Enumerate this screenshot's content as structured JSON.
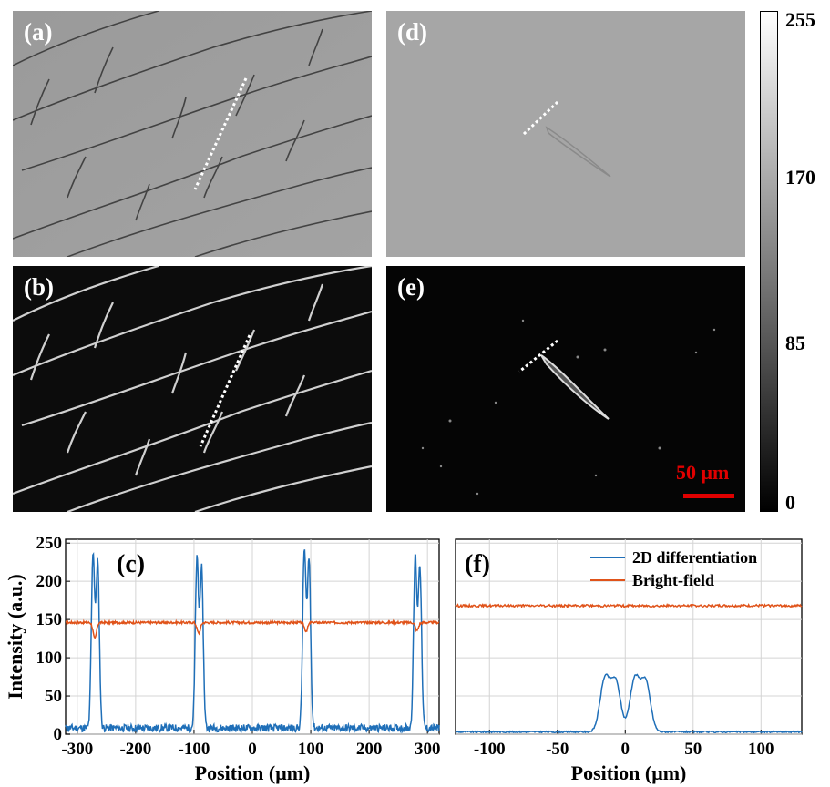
{
  "panels": {
    "a": {
      "label": "(a)"
    },
    "b": {
      "label": "(b)"
    },
    "d": {
      "label": "(d)"
    },
    "e": {
      "label": "(e)"
    }
  },
  "colorbar": {
    "ticks": [
      "255",
      "170",
      "85",
      "0"
    ],
    "values": [
      255,
      170,
      85,
      0
    ]
  },
  "scale_bar": {
    "label": "50 μm",
    "color": "#e00000"
  },
  "colors": {
    "series_2d": "#1f6fb8",
    "series_bf": "#e0531a"
  },
  "chart_data": [
    {
      "type": "line",
      "panel_label": "(c)",
      "xlabel": "Position (μm)",
      "ylabel": "Intensity (a.u.)",
      "xlim": [
        -320,
        320
      ],
      "ylim": [
        0,
        255
      ],
      "xticks": [
        -300,
        -200,
        -100,
        0,
        100,
        200,
        300
      ],
      "yticks": [
        0,
        50,
        100,
        150,
        200,
        250
      ],
      "grid": true,
      "peaks": [
        -270,
        -92,
        92,
        282
      ],
      "series": [
        {
          "key": "2d",
          "name": "2D differentiation",
          "baseline": 8,
          "peak_values": [
            240,
            230,
            243,
            235
          ]
        },
        {
          "key": "bf",
          "name": "Bright-field",
          "level": 146,
          "dip_values": [
            125,
            132,
            135,
            136
          ]
        }
      ]
    },
    {
      "type": "line",
      "panel_label": "(f)",
      "xlabel": "Position (μm)",
      "xlim": [
        -125,
        130
      ],
      "ylim": [
        0,
        255
      ],
      "xticks": [
        -100,
        -50,
        0,
        50,
        100
      ],
      "grid": true,
      "legend": "top-right",
      "peaks": [
        -12,
        10
      ],
      "series": [
        {
          "key": "2d",
          "name": "2D differentiation",
          "baseline": 3,
          "peak_values": [
            72,
            72
          ]
        },
        {
          "key": "bf",
          "name": "Bright-field",
          "level": 168
        }
      ]
    }
  ]
}
